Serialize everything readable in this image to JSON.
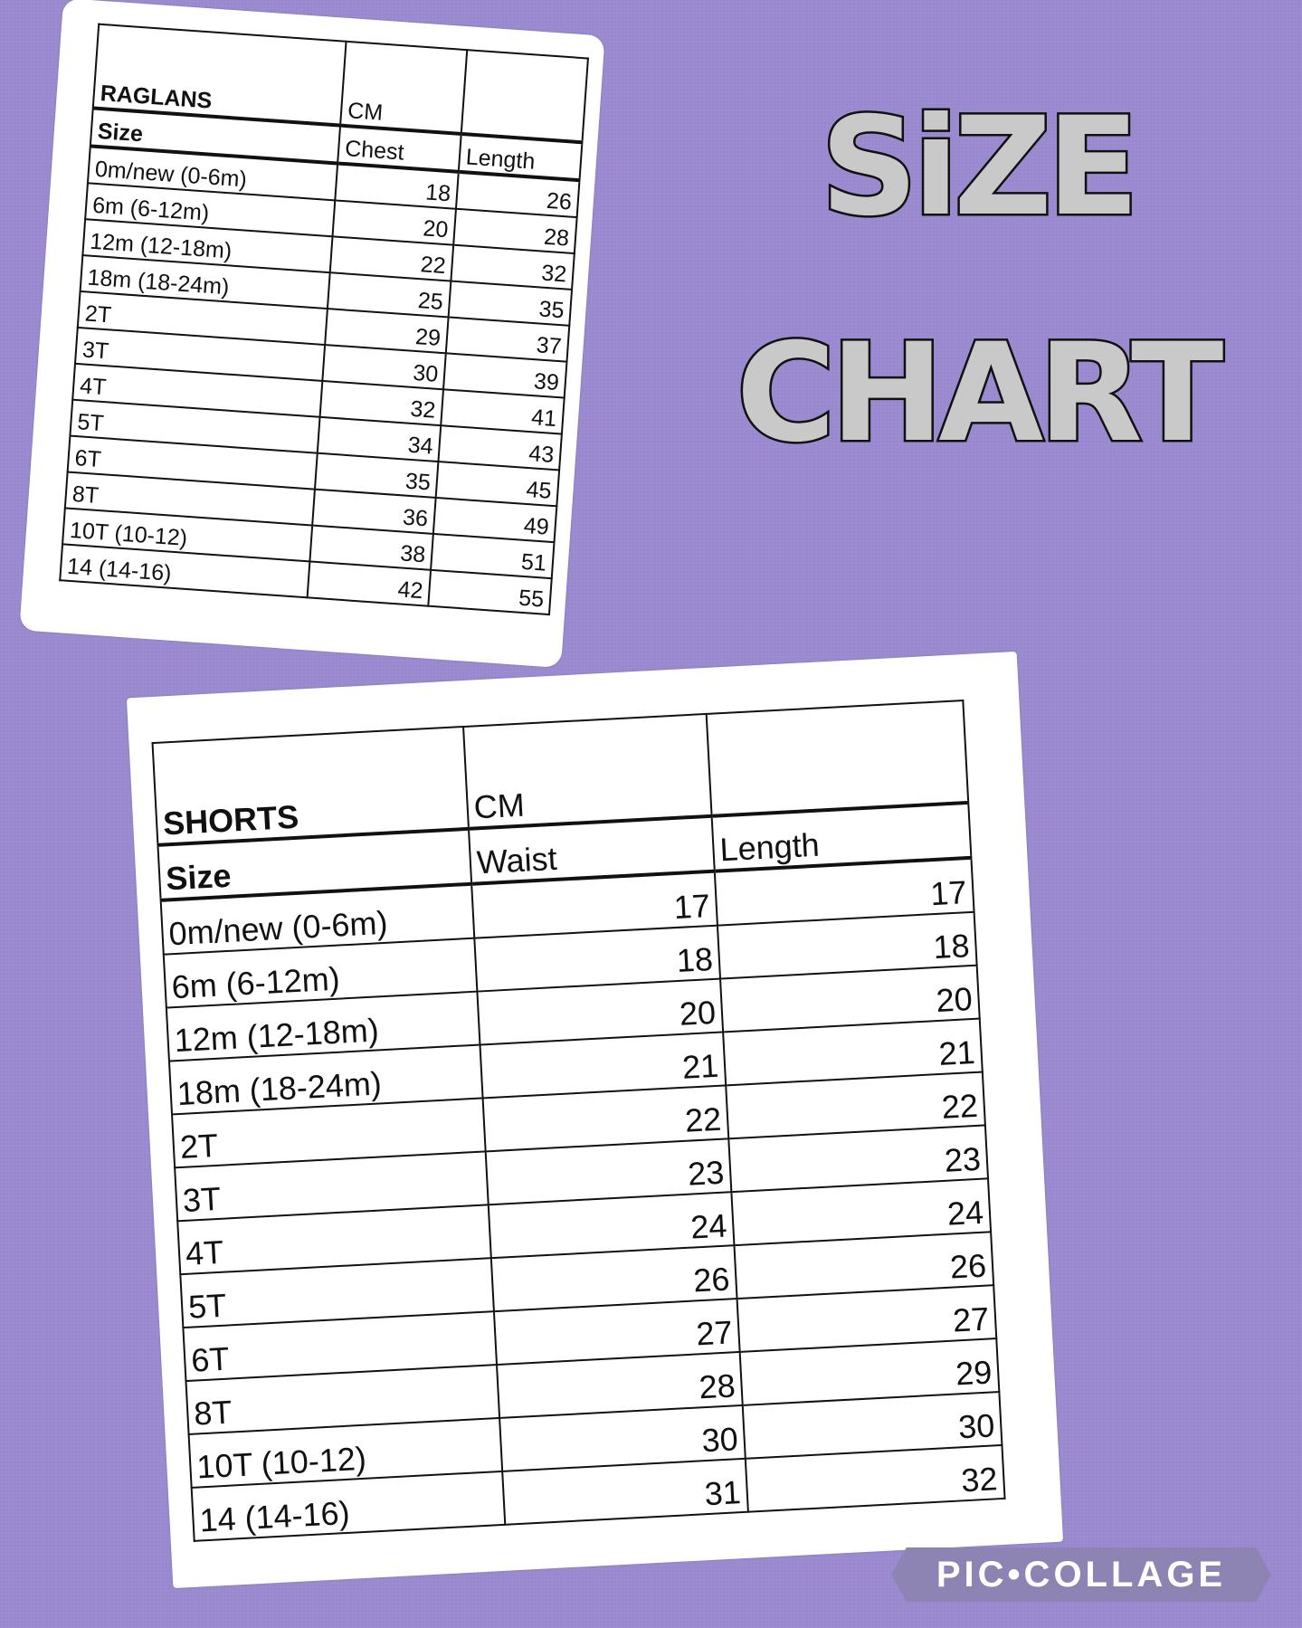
{
  "title": {
    "line1": "SiZE",
    "line2": "CHART"
  },
  "watermark": "PIC•COLLAGE",
  "raglans": {
    "title": "RAGLANS",
    "unit": "CM",
    "headers": [
      "Size",
      "Chest",
      "Length"
    ],
    "rows": [
      [
        "0m/new (0-6m)",
        "18",
        "26"
      ],
      [
        "6m  (6-12m)",
        "20",
        "28"
      ],
      [
        "12m  (12-18m)",
        "22",
        "32"
      ],
      [
        "18m  (18-24m)",
        "25",
        "35"
      ],
      [
        "2T",
        "29",
        "37"
      ],
      [
        "3T",
        "30",
        "39"
      ],
      [
        "4T",
        "32",
        "41"
      ],
      [
        "5T",
        "34",
        "43"
      ],
      [
        "6T",
        "35",
        "45"
      ],
      [
        "8T",
        "36",
        "49"
      ],
      [
        "10T  (10-12)",
        "38",
        "51"
      ],
      [
        "14  (14-16)",
        "42",
        "55"
      ]
    ]
  },
  "shorts": {
    "title": "SHORTS",
    "unit": "CM",
    "headers": [
      "Size",
      "Waist",
      "Length"
    ],
    "rows": [
      [
        "0m/new (0-6m)",
        "17",
        "17"
      ],
      [
        "6m  (6-12m)",
        "18",
        "18"
      ],
      [
        "12m  (12-18m)",
        "20",
        "20"
      ],
      [
        "18m  (18-24m)",
        "21",
        "21"
      ],
      [
        "2T",
        "22",
        "22"
      ],
      [
        "3T",
        "23",
        "23"
      ],
      [
        "4T",
        "24",
        "24"
      ],
      [
        "5T",
        "26",
        "26"
      ],
      [
        "6T",
        "27",
        "27"
      ],
      [
        "8T",
        "28",
        "29"
      ],
      [
        "10T  (10-12)",
        "30",
        "30"
      ],
      [
        "14  (14-16)",
        "31",
        "32"
      ]
    ]
  }
}
